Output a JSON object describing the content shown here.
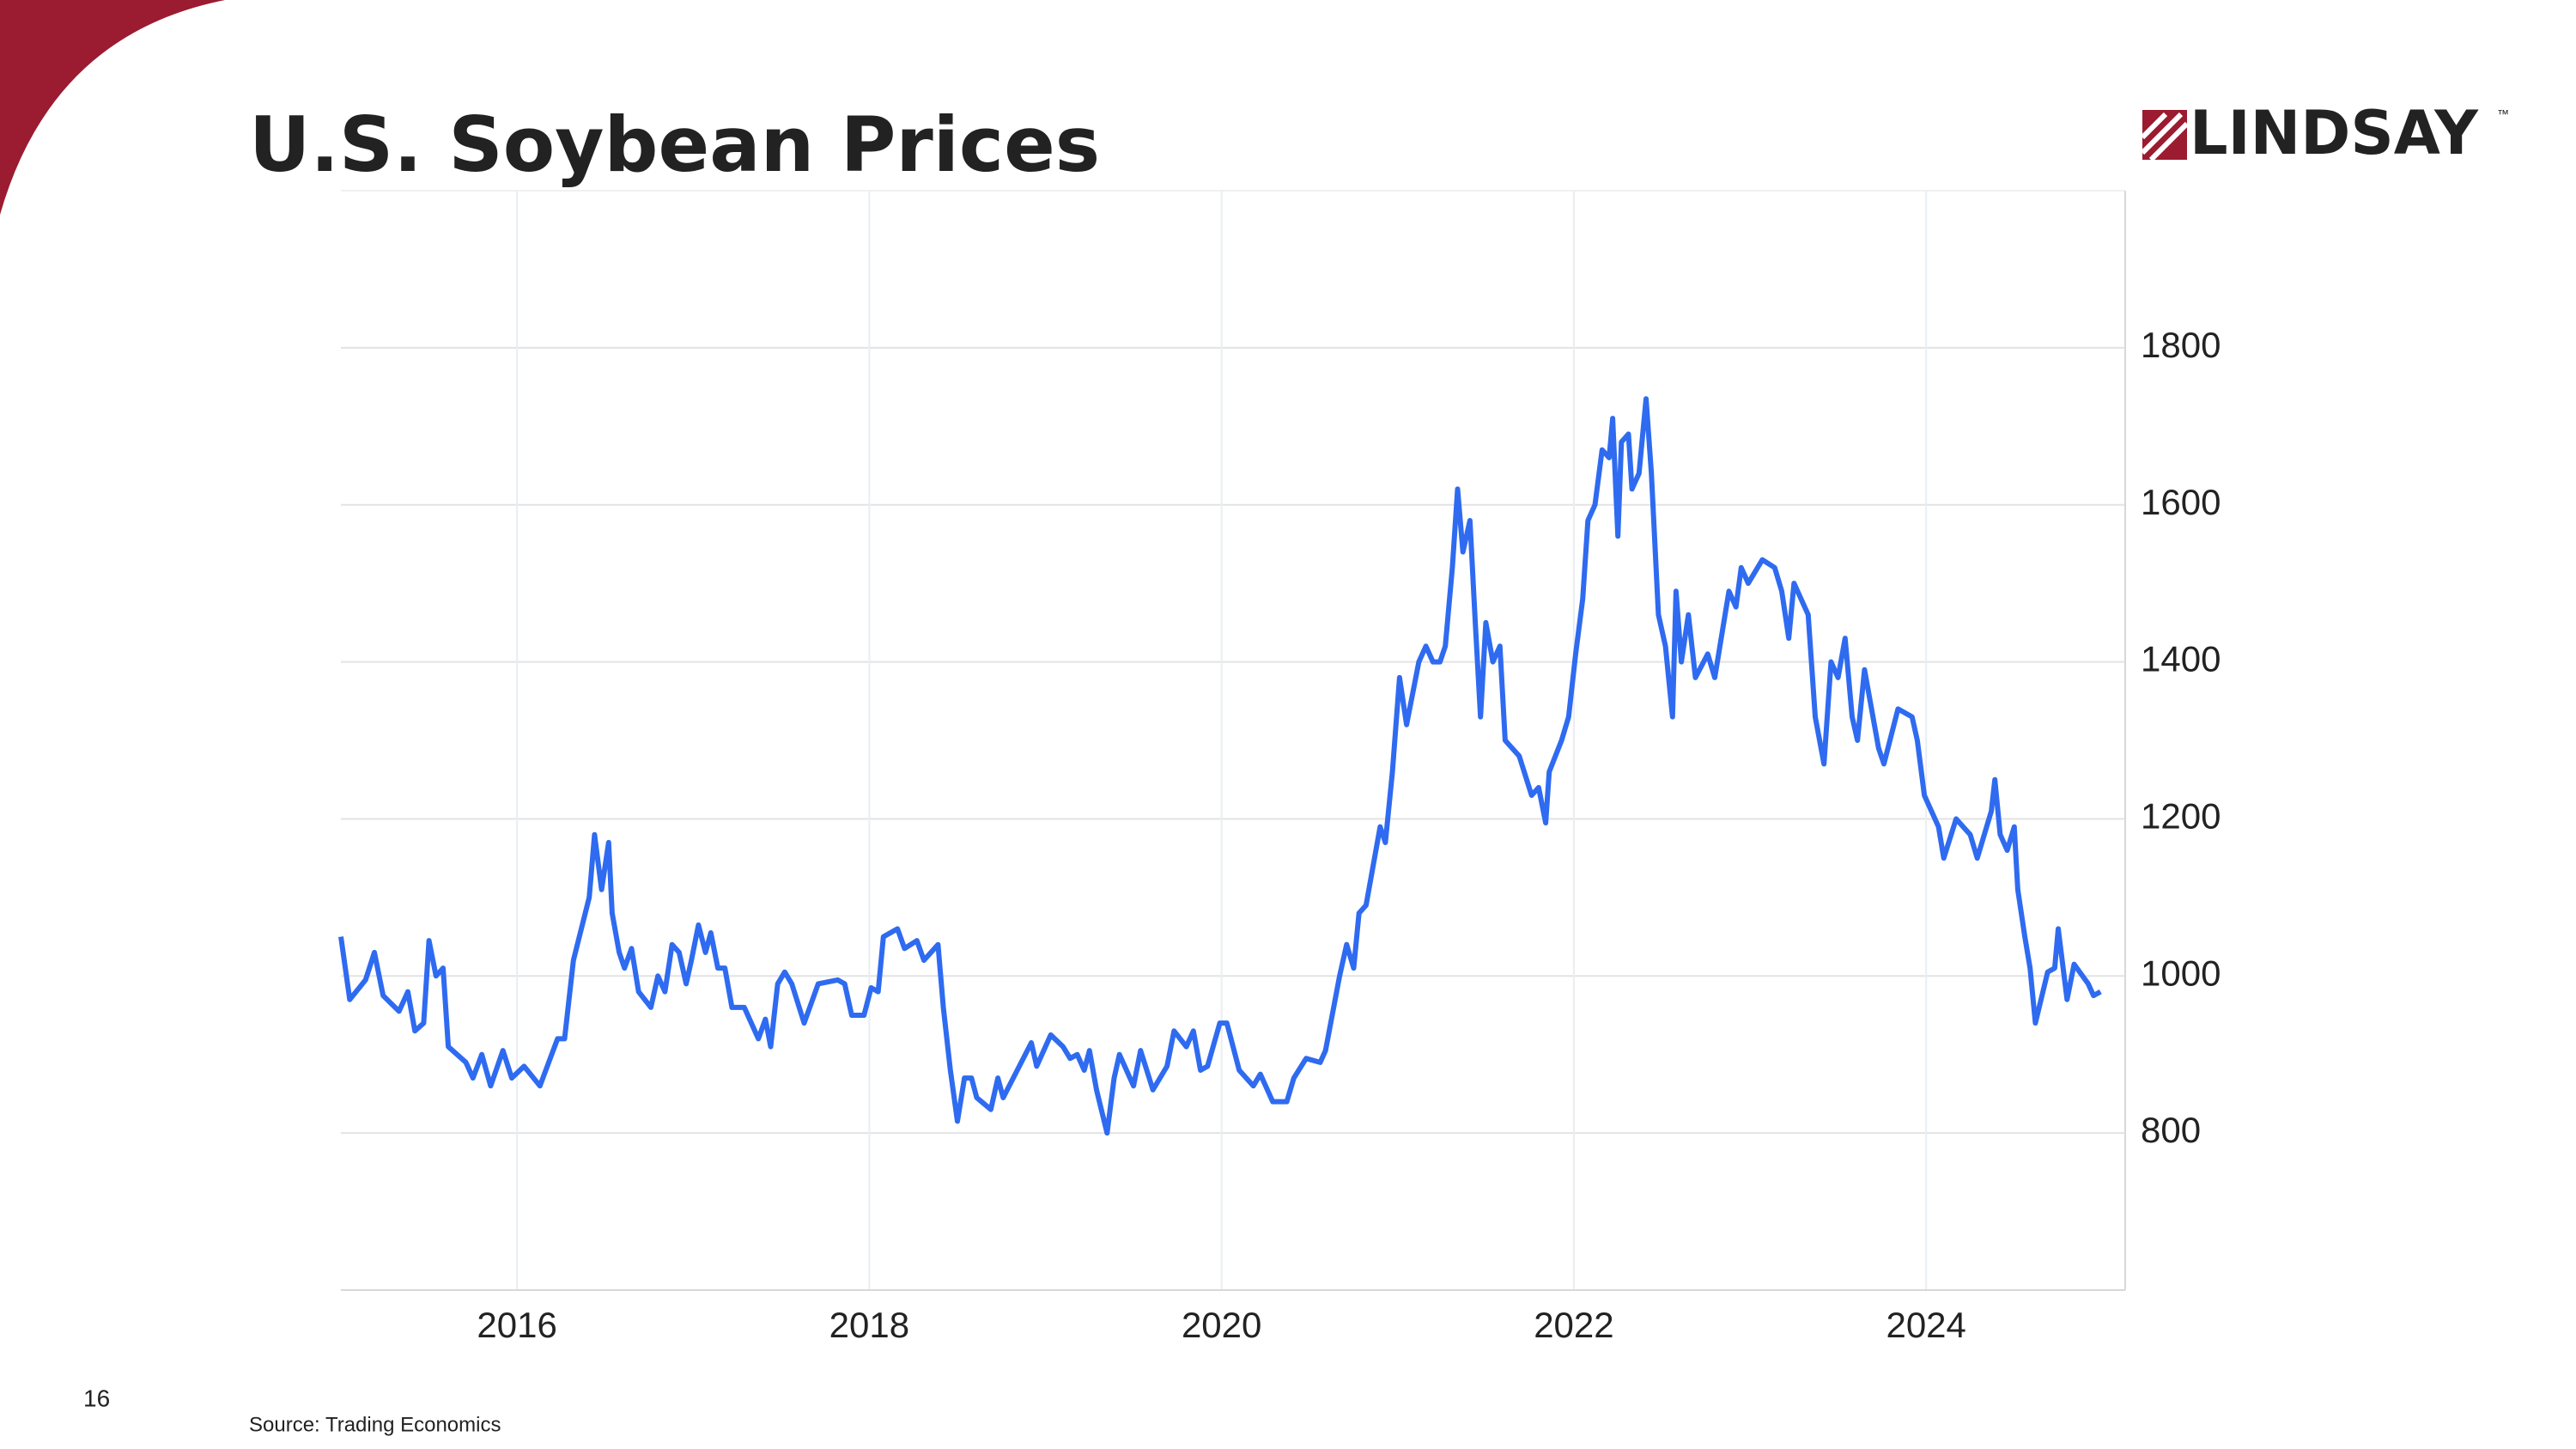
{
  "slide": {
    "logo": "LINDSAY",
    "logo_mark": "™",
    "page_number": "16",
    "source": "Source: Trading Economics"
  },
  "chart_data": {
    "type": "line",
    "title": "U.S. Soybean Prices",
    "color": "#2f6bf0",
    "grid": true,
    "xlim": [
      2015,
      2025.13
    ],
    "xticks": [
      2016,
      2018,
      2020,
      2022,
      2024
    ],
    "ylim": [
      600,
      2000
    ],
    "yticks": [
      800,
      1000,
      1200,
      1400,
      1600,
      1800
    ],
    "x": [
      2015.0,
      2015.05,
      2015.14,
      2015.19,
      2015.24,
      2015.33,
      2015.38,
      2015.42,
      2015.47,
      2015.5,
      2015.54,
      2015.58,
      2015.61,
      2015.71,
      2015.75,
      2015.8,
      2015.85,
      2015.92,
      2015.97,
      2016.04,
      2016.13,
      2016.23,
      2016.27,
      2016.32,
      2016.41,
      2016.44,
      2016.48,
      2016.52,
      2016.54,
      2016.58,
      2016.61,
      2016.65,
      2016.69,
      2016.76,
      2016.8,
      2016.84,
      2016.88,
      2016.92,
      2016.96,
      2016.99,
      2017.03,
      2017.07,
      2017.1,
      2017.14,
      2017.18,
      2017.22,
      2017.29,
      2017.37,
      2017.41,
      2017.44,
      2017.48,
      2017.52,
      2017.56,
      2017.63,
      2017.71,
      2017.82,
      2017.86,
      2017.9,
      2017.97,
      2018.01,
      2018.05,
      2018.08,
      2018.16,
      2018.2,
      2018.27,
      2018.31,
      2018.39,
      2018.42,
      2018.46,
      2018.5,
      2018.54,
      2018.58,
      2018.61,
      2018.69,
      2018.73,
      2018.76,
      2018.84,
      2018.92,
      2018.95,
      2019.03,
      2019.1,
      2019.14,
      2019.18,
      2019.22,
      2019.25,
      2019.29,
      2019.35,
      2019.39,
      2019.42,
      2019.5,
      2019.54,
      2019.61,
      2019.69,
      2019.73,
      2019.8,
      2019.84,
      2019.88,
      2019.92,
      2019.99,
      2020.03,
      2020.1,
      2020.18,
      2020.22,
      2020.29,
      2020.37,
      2020.41,
      2020.48,
      2020.56,
      2020.59,
      2020.67,
      2020.71,
      2020.75,
      2020.78,
      2020.82,
      2020.9,
      2020.93,
      2020.97,
      2021.01,
      2021.05,
      2021.12,
      2021.16,
      2021.2,
      2021.24,
      2021.27,
      2021.31,
      2021.34,
      2021.37,
      2021.41,
      2021.44,
      2021.47,
      2021.5,
      2021.54,
      2021.58,
      2021.61,
      2021.69,
      2021.76,
      2021.8,
      2021.84,
      2021.86,
      2021.93,
      2021.97,
      2022.01,
      2022.05,
      2022.08,
      2022.12,
      2022.16,
      2022.2,
      2022.22,
      2022.25,
      2022.27,
      2022.31,
      2022.33,
      2022.37,
      2022.41,
      2022.44,
      2022.48,
      2022.52,
      2022.56,
      2022.58,
      2022.61,
      2022.65,
      2022.69,
      2022.76,
      2022.8,
      2022.88,
      2022.92,
      2022.95,
      2022.99,
      2023.07,
      2023.14,
      2023.18,
      2023.22,
      2023.25,
      2023.33,
      2023.37,
      2023.42,
      2023.46,
      2023.5,
      2023.54,
      2023.58,
      2023.61,
      2023.65,
      2023.73,
      2023.76,
      2023.84,
      2023.92,
      2023.95,
      2023.99,
      2024.07,
      2024.1,
      2024.17,
      2024.25,
      2024.29,
      2024.37,
      2024.39,
      2024.42,
      2024.46,
      2024.5,
      2024.52,
      2024.56,
      2024.59,
      2024.62,
      2024.69,
      2024.73,
      2024.75,
      2024.8,
      2024.84,
      2024.92,
      2024.95,
      2024.99
    ],
    "values": [
      1050,
      970,
      995,
      1030,
      975,
      955,
      980,
      930,
      940,
      1045,
      1000,
      1010,
      910,
      890,
      870,
      900,
      860,
      905,
      870,
      885,
      860,
      920,
      920,
      1020,
      1100,
      1180,
      1110,
      1170,
      1080,
      1030,
      1010,
      1035,
      980,
      960,
      1000,
      980,
      1040,
      1030,
      990,
      1020,
      1065,
      1030,
      1055,
      1010,
      1010,
      960,
      960,
      920,
      945,
      910,
      990,
      1005,
      990,
      940,
      990,
      995,
      990,
      950,
      950,
      985,
      980,
      1050,
      1060,
      1035,
      1045,
      1020,
      1040,
      960,
      880,
      815,
      870,
      870,
      845,
      830,
      870,
      845,
      880,
      915,
      885,
      925,
      910,
      895,
      900,
      880,
      905,
      855,
      800,
      870,
      900,
      860,
      905,
      855,
      885,
      930,
      910,
      930,
      880,
      885,
      940,
      940,
      880,
      860,
      875,
      840,
      840,
      870,
      895,
      890,
      905,
      1000,
      1040,
      1010,
      1080,
      1090,
      1190,
      1170,
      1260,
      1380,
      1320,
      1400,
      1420,
      1400,
      1400,
      1420,
      1520,
      1620,
      1540,
      1580,
      1450,
      1330,
      1450,
      1400,
      1420,
      1300,
      1280,
      1230,
      1240,
      1195,
      1260,
      1300,
      1330,
      1410,
      1480,
      1580,
      1600,
      1670,
      1660,
      1710,
      1560,
      1680,
      1690,
      1620,
      1640,
      1735,
      1640,
      1460,
      1420,
      1330,
      1490,
      1400,
      1460,
      1380,
      1410,
      1380,
      1490,
      1470,
      1520,
      1500,
      1530,
      1520,
      1490,
      1430,
      1500,
      1460,
      1330,
      1270,
      1400,
      1380,
      1430,
      1330,
      1300,
      1390,
      1290,
      1270,
      1340,
      1330,
      1300,
      1230,
      1190,
      1150,
      1200,
      1180,
      1150,
      1210,
      1250,
      1180,
      1160,
      1190,
      1110,
      1050,
      1010,
      940,
      1005,
      1010,
      1060,
      970,
      1015,
      990,
      975,
      980
    ]
  }
}
